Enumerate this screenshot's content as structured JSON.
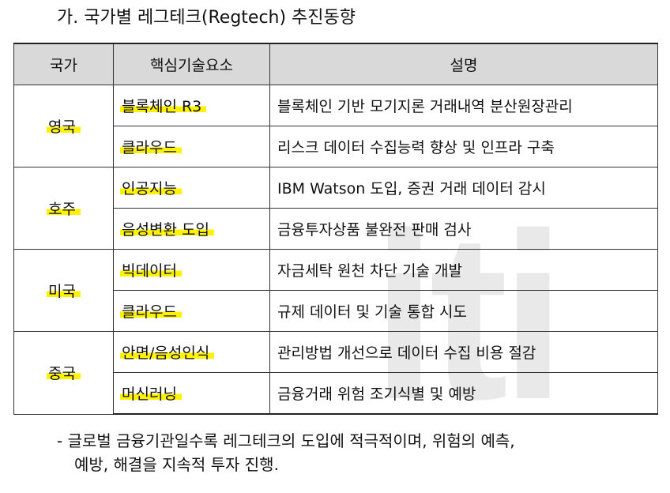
{
  "heading": "가. 국가별 레그테크(Regtech) 추진동향",
  "watermark": "iti",
  "table": {
    "headers": [
      "국가",
      "핵심기술요소",
      "설명"
    ],
    "rows": [
      {
        "country": "영국",
        "tech": "블록체인 R3",
        "desc": "블록체인 기반 모기지론 거래내역 분산원장관리"
      },
      {
        "country": "",
        "tech": "클라우드",
        "desc": "리스크 데이터 수집능력 향상 및 인프라 구축"
      },
      {
        "country": "호주",
        "tech": "인공지능",
        "desc": "IBM Watson 도입, 증권 거래 데이터 감시"
      },
      {
        "country": "",
        "tech": "음성변환 도입",
        "desc": "금융투자상품 불완전 판매 검사"
      },
      {
        "country": "미국",
        "tech": "빅데이터",
        "desc": "자금세탁 원천 차단 기술 개발"
      },
      {
        "country": "",
        "tech": "클라우드",
        "desc": "규제 데이터 및 기술 통합 시도"
      },
      {
        "country": "중국",
        "tech": "안면/음성인식",
        "desc": "관리방법 개선으로 데이터 수집 비용 절감"
      },
      {
        "country": "",
        "tech": "머신러닝",
        "desc": "금융거래 위험 조기식별 및 예방"
      }
    ]
  },
  "note": {
    "line1": "- 글로벌 금융기관일수록 레그테크의 도입에 적극적이며, 위험의 예측,",
    "line2": "예방, 해결을 지속적 투자 진행."
  },
  "highlight_color": "#fff200"
}
